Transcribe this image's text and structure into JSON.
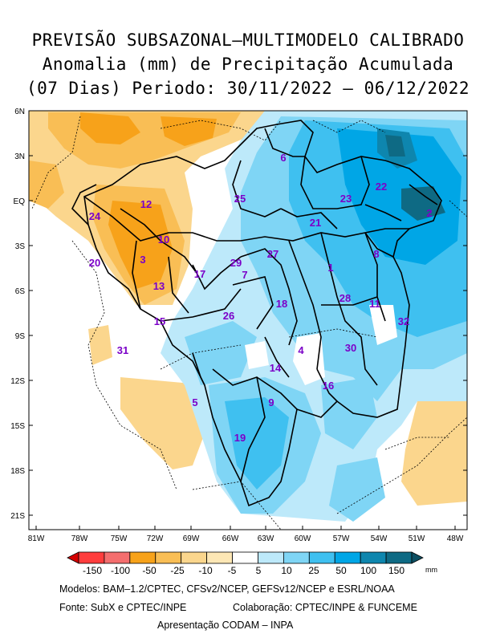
{
  "title": {
    "line1": "PREVISÃO SUBSAZONAL—MULTIMODELO CALIBRADO",
    "line2": "Anomalia (mm) de Precipitação Acumulada",
    "line3": "(07 Dias) Periodo: 30/11/2022 — 06/12/2022"
  },
  "axes": {
    "lat_labels": [
      "6N",
      "3N",
      "EQ",
      "3S",
      "6S",
      "9S",
      "12S",
      "15S",
      "18S",
      "21S"
    ],
    "lon_labels": [
      "81W",
      "78W",
      "75W",
      "72W",
      "69W",
      "66W",
      "63W",
      "60W",
      "57W",
      "54W",
      "51W",
      "48W"
    ]
  },
  "regions": [
    "1",
    "2",
    "3",
    "4",
    "5",
    "6",
    "7",
    "8",
    "9",
    "10",
    "11",
    "12",
    "13",
    "14",
    "15",
    "16",
    "17",
    "18",
    "19",
    "20",
    "21",
    "22",
    "23",
    "24",
    "25",
    "26",
    "27",
    "28",
    "29",
    "30",
    "31",
    "32"
  ],
  "colorbar": {
    "labels": [
      "-150",
      "-100",
      "-50",
      "-25",
      "-10",
      "-5",
      "5",
      "10",
      "25",
      "50",
      "100",
      "150"
    ],
    "unit": "mm",
    "colors": [
      "#d40000",
      "#ff3d3d",
      "#f46e6e",
      "#f7a21a",
      "#f9be55",
      "#fbd68d",
      "#fde7b5",
      "#ffffff",
      "#bde9fa",
      "#7fd5f5",
      "#3fc0f0",
      "#00a6e6",
      "#0e86ae",
      "#0e6a84",
      "#0d4f62"
    ]
  },
  "footer": {
    "models": "Modelos: BAM–1.2/CPTEC, CFSv2/NCEP, GEFSv12/NCEP e ESRL/NOAA",
    "source": "Fonte: SubX e CPTEC/INPE",
    "collab": "Colaboração: CPTEC/INPE & FUNCEME",
    "presentation": "Apresentação CODAM – INPA"
  }
}
